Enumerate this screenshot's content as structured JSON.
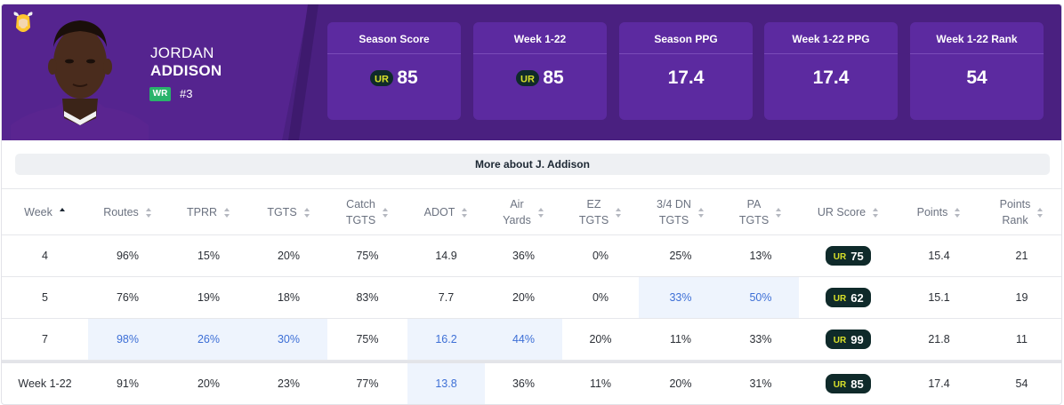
{
  "player": {
    "first_name": "JORDAN",
    "last_name": "ADDISON",
    "position": "WR",
    "jersey": "#3",
    "team_logo_icon": "vikings-logo-icon",
    "photo": "player-headshot"
  },
  "stats": [
    {
      "label": "Season Score",
      "value": "85",
      "has_ur_logo": true
    },
    {
      "label": "Week 1-22",
      "value": "85",
      "has_ur_logo": true
    },
    {
      "label": "Season PPG",
      "value": "17.4",
      "has_ur_logo": false
    },
    {
      "label": "Week 1-22 PPG",
      "value": "17.4",
      "has_ur_logo": false
    },
    {
      "label": "Week 1-22 Rank",
      "value": "54",
      "has_ur_logo": false
    }
  ],
  "more_about": "More about J. Addison",
  "table": {
    "columns": [
      {
        "line1": "Week",
        "line2": "",
        "sort": "asc"
      },
      {
        "line1": "Routes",
        "line2": "",
        "sort": "none"
      },
      {
        "line1": "TPRR",
        "line2": "",
        "sort": "none"
      },
      {
        "line1": "TGTS",
        "line2": "",
        "sort": "none"
      },
      {
        "line1": "Catch",
        "line2": "TGTS",
        "sort": "none"
      },
      {
        "line1": "ADOT",
        "line2": "",
        "sort": "none"
      },
      {
        "line1": "Air",
        "line2": "Yards",
        "sort": "none"
      },
      {
        "line1": "EZ",
        "line2": "TGTS",
        "sort": "none"
      },
      {
        "line1": "3/4 DN",
        "line2": "TGTS",
        "sort": "none"
      },
      {
        "line1": "PA",
        "line2": "TGTS",
        "sort": "none"
      },
      {
        "line1": "UR Score",
        "line2": "",
        "sort": "none"
      },
      {
        "line1": "Points",
        "line2": "",
        "sort": "none"
      },
      {
        "line1": "Points",
        "line2": "Rank",
        "sort": "none"
      }
    ],
    "rows": [
      {
        "cells": [
          "4",
          "96%",
          "15%",
          "20%",
          "75%",
          "14.9",
          "36%",
          "0%",
          "25%",
          "13%",
          "75",
          "15.4",
          "21"
        ],
        "highlight": []
      },
      {
        "cells": [
          "5",
          "76%",
          "19%",
          "18%",
          "83%",
          "7.7",
          "20%",
          "0%",
          "33%",
          "50%",
          "62",
          "15.1",
          "19"
        ],
        "highlight": [
          8,
          9
        ]
      },
      {
        "cells": [
          "7",
          "98%",
          "26%",
          "30%",
          "75%",
          "16.2",
          "44%",
          "20%",
          "11%",
          "33%",
          "99",
          "21.8",
          "11"
        ],
        "highlight": [
          1,
          2,
          3,
          5,
          6
        ]
      }
    ],
    "total": {
      "cells": [
        "Week 1-22",
        "91%",
        "20%",
        "23%",
        "77%",
        "13.8",
        "36%",
        "11%",
        "20%",
        "31%",
        "85",
        "17.4",
        "54"
      ],
      "highlight": [
        5
      ]
    }
  },
  "colors": {
    "header_bg": "#4a2080",
    "stat_box_bg": "#5c2aa0",
    "position_badge": "#29b36b",
    "highlight_bg": "#eef4fd",
    "highlight_text": "#3d6fd6",
    "ur_pill_bg": "#0f2a2a",
    "ur_logo_yellow": "#d8e02a"
  }
}
